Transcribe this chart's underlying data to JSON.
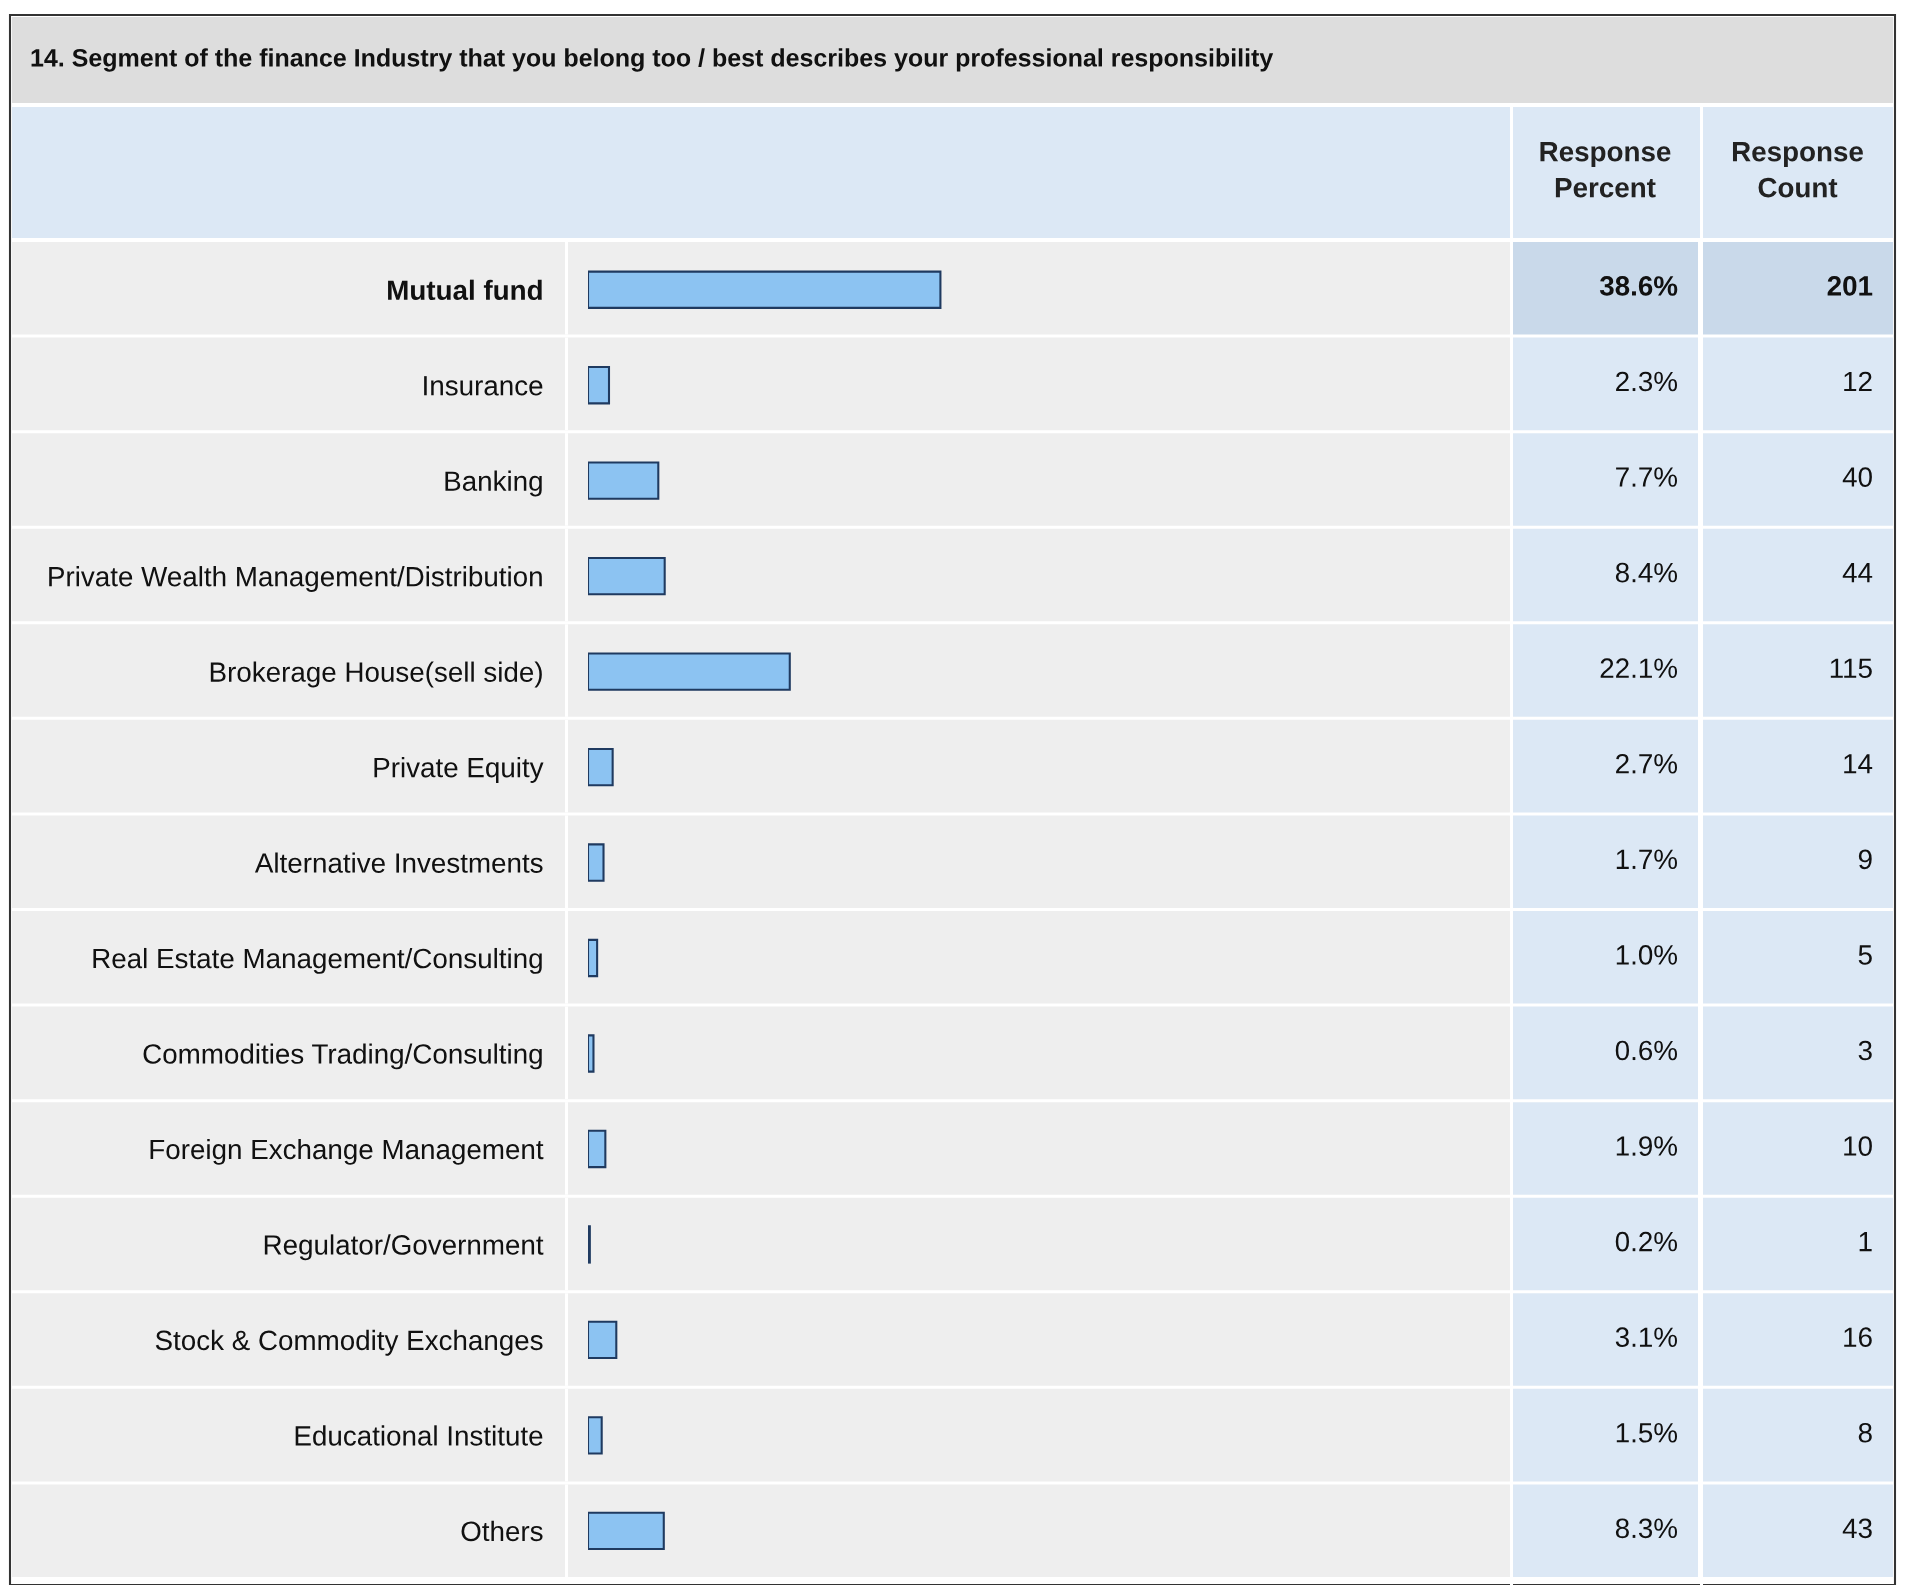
{
  "chart_data": {
    "type": "bar",
    "orientation": "horizontal",
    "title": "14. Segment of the finance Industry that you belong too / best describes your professional responsibility",
    "categories": [
      "Mutual fund",
      "Insurance",
      "Banking",
      "Private Wealth Management/Distribution",
      "Brokerage House(sell side)",
      "Private Equity",
      "Alternative Investments",
      "Real Estate Management/Consulting",
      "Commodities Trading/Consulting",
      "Foreign Exchange Management",
      "Regulator/Government",
      "Stock & Commodity Exchanges",
      "Educational Institute",
      "Others"
    ],
    "tick_labels": "y",
    "color": "#8cc3f2",
    "values": [
      38.6,
      2.3,
      7.7,
      8.4,
      22.1,
      2.7,
      1.7,
      1.0,
      0.6,
      1.9,
      0.2,
      3.1,
      1.5,
      8.3
    ],
    "value_labels": [
      "38.6%",
      "2.3%",
      "7.7%",
      "8.4%",
      "22.1%",
      "2.7%",
      "1.7%",
      "1.0%",
      "0.6%",
      "1.9%",
      "0.2%",
      "3.1%",
      "1.5%",
      "8.3%"
    ],
    "annotations": [
      "Response Percent",
      "Response Count",
      "201",
      "12",
      "40",
      "44",
      "115",
      "14",
      "9",
      "5",
      "3",
      "10",
      "1",
      "16",
      "8",
      "43"
    ]
  }
}
